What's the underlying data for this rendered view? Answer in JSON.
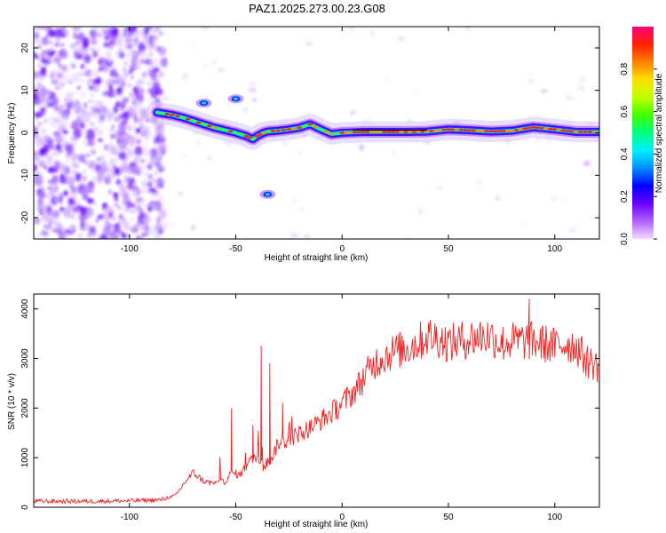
{
  "chart_data": [
    {
      "type": "heatmap",
      "title": "PAZ1.2025.273.00.23.G08",
      "xlabel": "Height of straight line (km)",
      "ylabel": "Frequency (Hz)",
      "xlim": [
        -145,
        121
      ],
      "ylim": [
        -25,
        25
      ],
      "xticks": [
        -100,
        -50,
        0,
        50,
        100
      ],
      "yticks": [
        -20,
        -10,
        0,
        10,
        20
      ],
      "colorbar": {
        "label": "Normalized spectral amplitude",
        "range": [
          0,
          1
        ],
        "ticks": [
          "0.0",
          "0.2",
          "0.4",
          "0.6",
          "0.8"
        ],
        "colors": [
          "#f2ddff",
          "#b060ff",
          "#6a00ff",
          "#0000ff",
          "#0090ff",
          "#00f0ff",
          "#00ff80",
          "#40ff00",
          "#c0ff00",
          "#ffe000",
          "#ff8000",
          "#ff2000",
          "#ff0080"
        ]
      },
      "ridge": {
        "height_km": [
          -87,
          -80,
          -75,
          -70,
          -65,
          -60,
          -55,
          -50,
          -45,
          -42,
          -40,
          -37,
          -35,
          -30,
          -25,
          -20,
          -15,
          -10,
          -5,
          0,
          10,
          20,
          30,
          40,
          50,
          60,
          70,
          80,
          90,
          100,
          110,
          121
        ],
        "frequency_hz": [
          4.8,
          4.2,
          3.6,
          2.8,
          2.0,
          1.2,
          0.6,
          0.0,
          -0.8,
          -1.5,
          -0.8,
          0.0,
          0.3,
          0.5,
          0.8,
          1.2,
          2.0,
          0.8,
          -0.3,
          0.0,
          0.2,
          0.2,
          0.2,
          0.3,
          0.8,
          0.6,
          0.3,
          0.5,
          1.3,
          0.8,
          0.2,
          0.2
        ]
      },
      "features": [
        {
          "height_km": -50,
          "frequency_hz": 8.0
        },
        {
          "height_km": -65,
          "frequency_hz": 7.0
        },
        {
          "height_km": -35,
          "frequency_hz": -14.5
        }
      ]
    },
    {
      "type": "line",
      "xlabel": "Height of straight line (km)",
      "ylabel": "SNR (10 * v/v)",
      "xlim": [
        -145,
        121
      ],
      "ylim": [
        0,
        4300
      ],
      "xticks": [
        -100,
        -50,
        0,
        50,
        100
      ],
      "yticks": [
        0,
        1000,
        2000,
        3000,
        4000
      ],
      "series": [
        {
          "name": "SNR",
          "color": "#ee2222",
          "x": [
            -145,
            -120,
            -100,
            -85,
            -78,
            -74,
            -70,
            -65,
            -60,
            -55,
            -52,
            -48,
            -44,
            -40,
            -37,
            -33,
            -30,
            -25,
            -20,
            -15,
            -10,
            -5,
            0,
            5,
            10,
            15,
            20,
            25,
            30,
            35,
            40,
            45,
            50,
            55,
            60,
            65,
            70,
            75,
            80,
            85,
            90,
            95,
            100,
            105,
            110,
            115,
            121
          ],
          "y": [
            120,
            120,
            130,
            150,
            250,
            500,
            700,
            520,
            480,
            520,
            700,
            650,
            900,
            1050,
            800,
            1000,
            1300,
            1350,
            1500,
            1600,
            1750,
            1900,
            2100,
            2300,
            2600,
            2900,
            3050,
            3150,
            3200,
            3300,
            3450,
            3420,
            3300,
            3350,
            3400,
            3450,
            3450,
            3300,
            3350,
            3350,
            3350,
            3300,
            3250,
            3300,
            3250,
            2950,
            2850
          ],
          "spikes": [
            {
              "x": -52,
              "y": 2000
            },
            {
              "x": -42,
              "y": 1650
            },
            {
              "x": -38,
              "y": 3250
            },
            {
              "x": -34,
              "y": 2900
            },
            {
              "x": -28,
              "y": 2100
            },
            {
              "x": 88,
              "y": 4200
            }
          ]
        }
      ]
    }
  ]
}
